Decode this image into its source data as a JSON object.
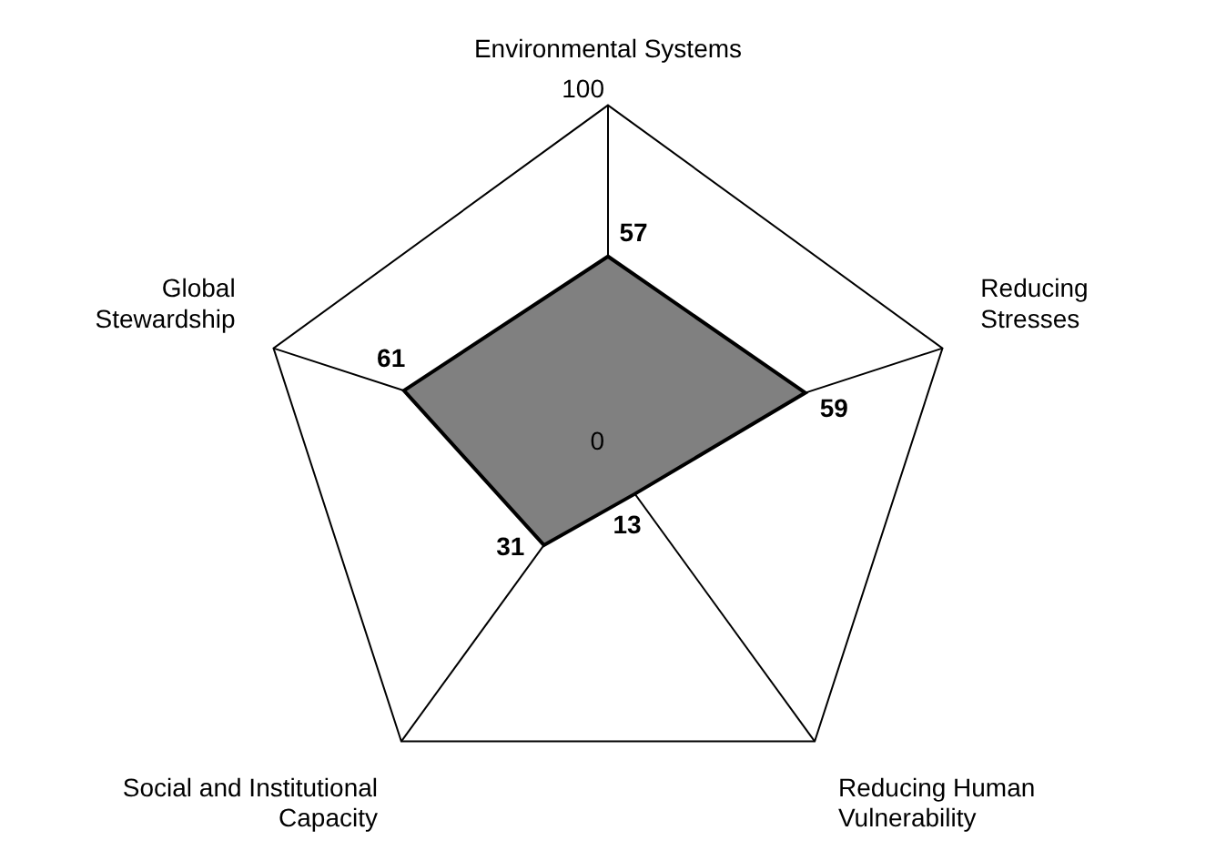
{
  "chart_data": {
    "type": "radar",
    "categories": [
      "Environmental Systems",
      "Reducing\nStresses",
      "Reducing Human\nVulnerability",
      "Social and Institutional\nCapacity",
      "Global\nStewardship"
    ],
    "series": [
      {
        "color": "#808080",
        "values": [
          57,
          59,
          13,
          31,
          61
        ]
      }
    ],
    "ylim": [
      0,
      100
    ],
    "yticks": [
      0,
      100
    ],
    "grid": true,
    "data_labels": true,
    "legend": false,
    "marker": "none"
  }
}
